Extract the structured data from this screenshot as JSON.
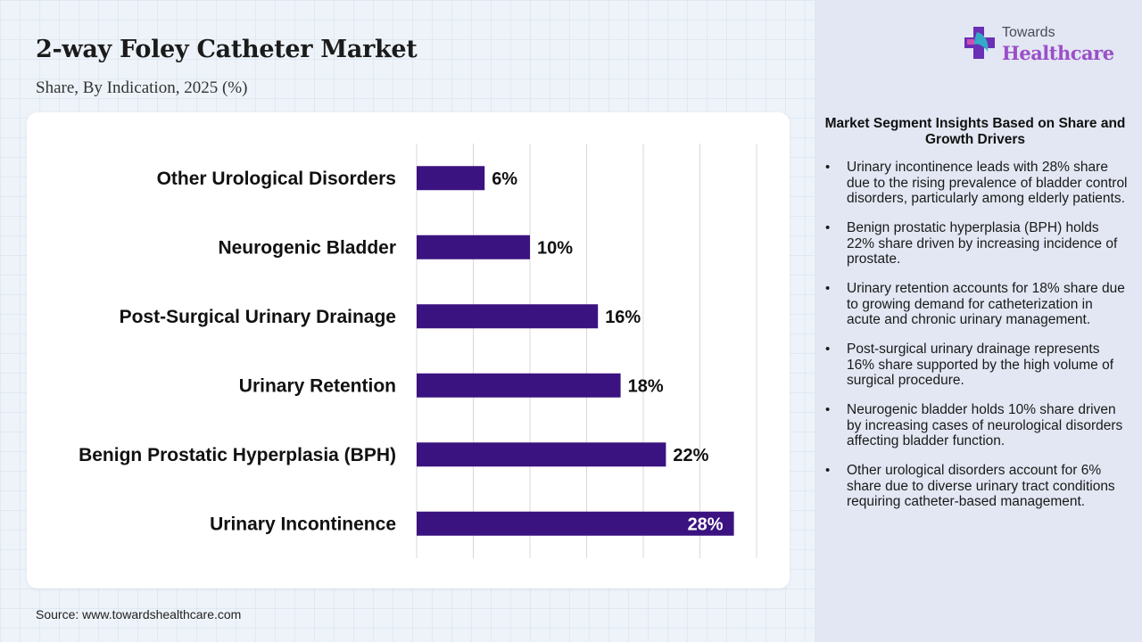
{
  "header": {
    "title": "2-way Foley Catheter Market",
    "subtitle": "Share, By Indication, 2025 (%)"
  },
  "source": "Source: www.towardshealthcare.com",
  "brand": {
    "name_small": "Towards",
    "name_big": "Healthcare",
    "icon": "plus-cross-icon",
    "colors": {
      "icon_purple": "#6a2fb5",
      "icon_teal": "#2fb8c9",
      "text_purple": "#9b4fc8"
    }
  },
  "insights": {
    "title": "Market Segment Insights Based on Share and Growth Drivers",
    "bullets": [
      "Urinary incontinence leads with 28% share due to the rising prevalence of bladder control disorders, particularly among elderly patients.",
      "Benign prostatic hyperplasia (BPH) holds 22% share driven by increasing incidence of prostate.",
      "Urinary retention accounts for 18% share due to growing demand for catheterization in acute and chronic urinary management.",
      "Post-surgical urinary drainage represents 16% share supported by the high volume of surgical procedure.",
      "Neurogenic bladder holds 10% share driven by increasing cases of neurological disorders affecting bladder function.",
      "Other urological disorders account for 6% share due to diverse urinary tract conditions requiring catheter-based management."
    ]
  },
  "chart_data": {
    "type": "bar",
    "orientation": "horizontal",
    "title": "2-way Foley Catheter Market",
    "subtitle": "Share, By Indication, 2025 (%)",
    "categories": [
      "Other Urological Disorders",
      "Neurogenic Bladder",
      "Post-Surgical Urinary Drainage",
      "Urinary Retention",
      "Benign Prostatic Hyperplasia (BPH)",
      "Urinary Incontinence"
    ],
    "values": [
      6,
      10,
      16,
      18,
      22,
      28
    ],
    "value_labels": [
      "6%",
      "10%",
      "16%",
      "18%",
      "22%",
      "28%"
    ],
    "xlim": [
      0,
      30
    ],
    "grid": true,
    "grid_step": 5,
    "bar_color": "#3b1380",
    "legend": "none"
  }
}
